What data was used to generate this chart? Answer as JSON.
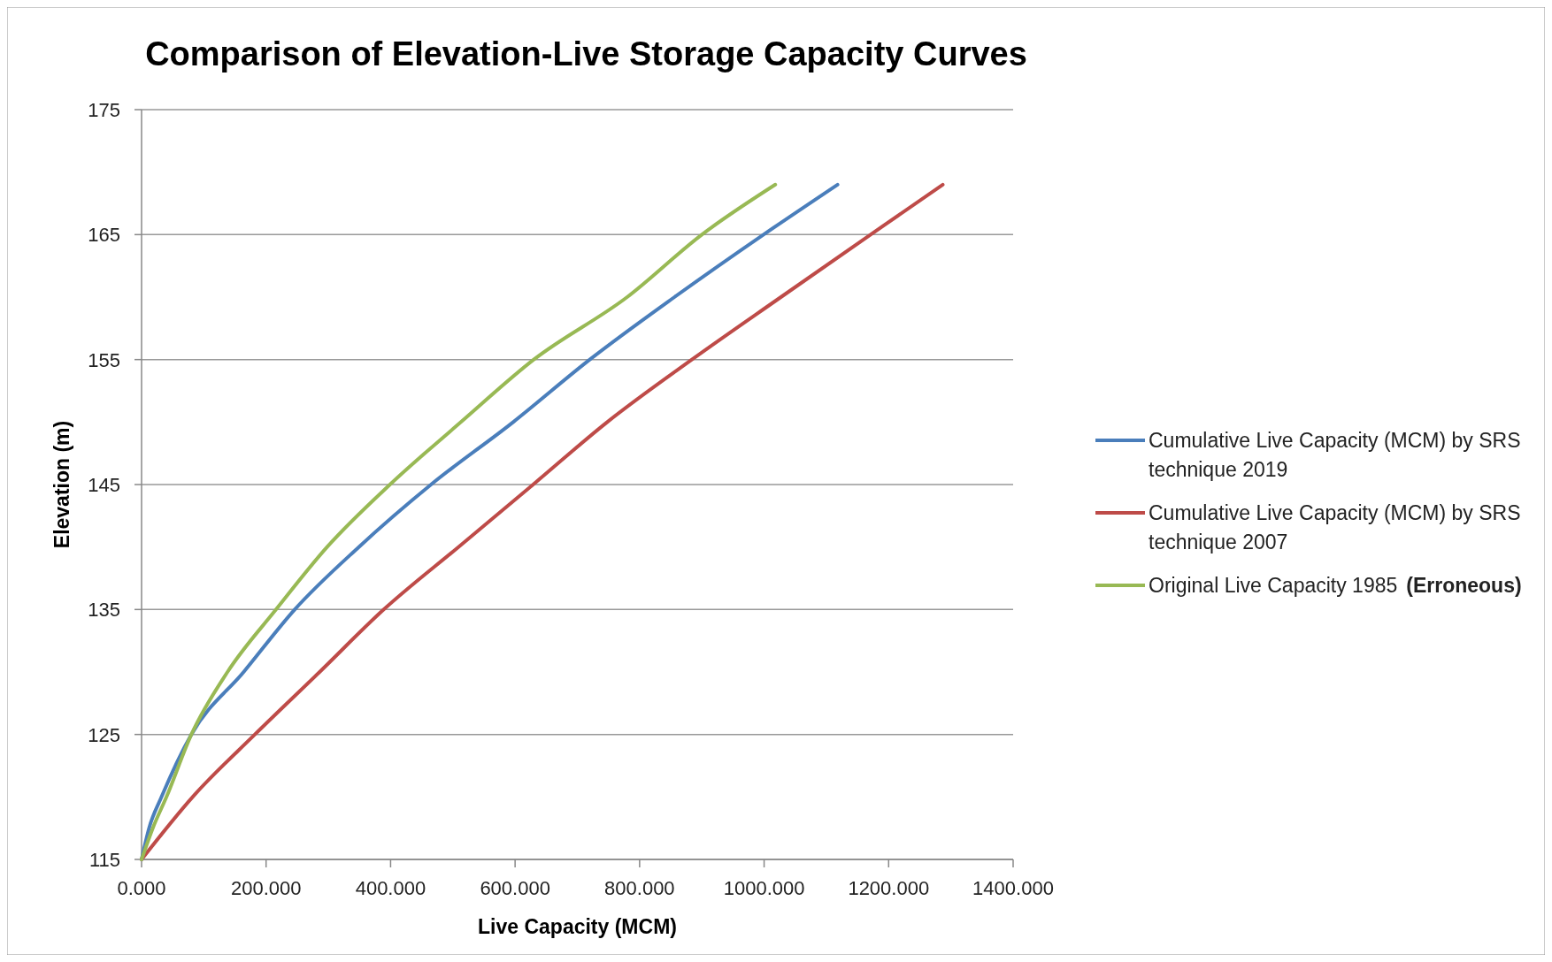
{
  "chart_data": {
    "type": "line",
    "title": "Comparison of Elevation-Live Storage Capacity Curves",
    "xlabel": "Live Capacity (MCM)",
    "ylabel": "Elevation (m)",
    "xlim": [
      0,
      1400
    ],
    "xticks": [
      {
        "value": 0,
        "label": "0.000"
      },
      {
        "value": 200,
        "label": "200.000"
      },
      {
        "value": 400,
        "label": "400.000"
      },
      {
        "value": 600,
        "label": "600.000"
      },
      {
        "value": 800,
        "label": "800.000"
      },
      {
        "value": 1000,
        "label": "1000.000"
      },
      {
        "value": 1200,
        "label": "1200.000"
      },
      {
        "value": 1400,
        "label": "1400.000"
      }
    ],
    "ylim": [
      115,
      175
    ],
    "yticks": [
      115,
      125,
      135,
      145,
      155,
      165,
      175
    ],
    "grid": "y",
    "legend": "right",
    "marker": "none",
    "line_style": "solid",
    "annotations": [
      "(Erroneous)"
    ],
    "series": [
      {
        "name": "Cumulative Live Capacity (MCM) by SRS technique 2019",
        "color": "#4a7ebb",
        "x": [
          0,
          12,
          32,
          80,
          164,
          246,
          349,
          465,
          597,
          720,
          856,
          999,
          1118
        ],
        "values": [
          115,
          117.5,
          120,
          125,
          130,
          135,
          140,
          145,
          150,
          155,
          160,
          165,
          169
        ]
      },
      {
        "name": "Cumulative Live Capacity (MCM) by SRS technique 2007",
        "color": "#be4b48",
        "x": [
          0,
          82,
          182,
          286,
          389,
          509,
          629,
          748,
          884,
          1027,
          1171,
          1287
        ],
        "values": [
          115,
          120,
          125,
          130,
          135,
          140,
          145,
          150,
          155,
          160,
          165,
          169
        ]
      },
      {
        "name": "Original Live Capacity 1985",
        "color": "#98b954",
        "x": [
          0,
          18,
          40,
          80,
          138,
          216,
          298,
          399,
          513,
          630,
          780,
          900,
          1018
        ],
        "values": [
          115,
          117.5,
          120,
          125,
          130,
          135,
          140,
          145,
          150,
          155,
          160,
          165,
          169
        ]
      }
    ]
  }
}
